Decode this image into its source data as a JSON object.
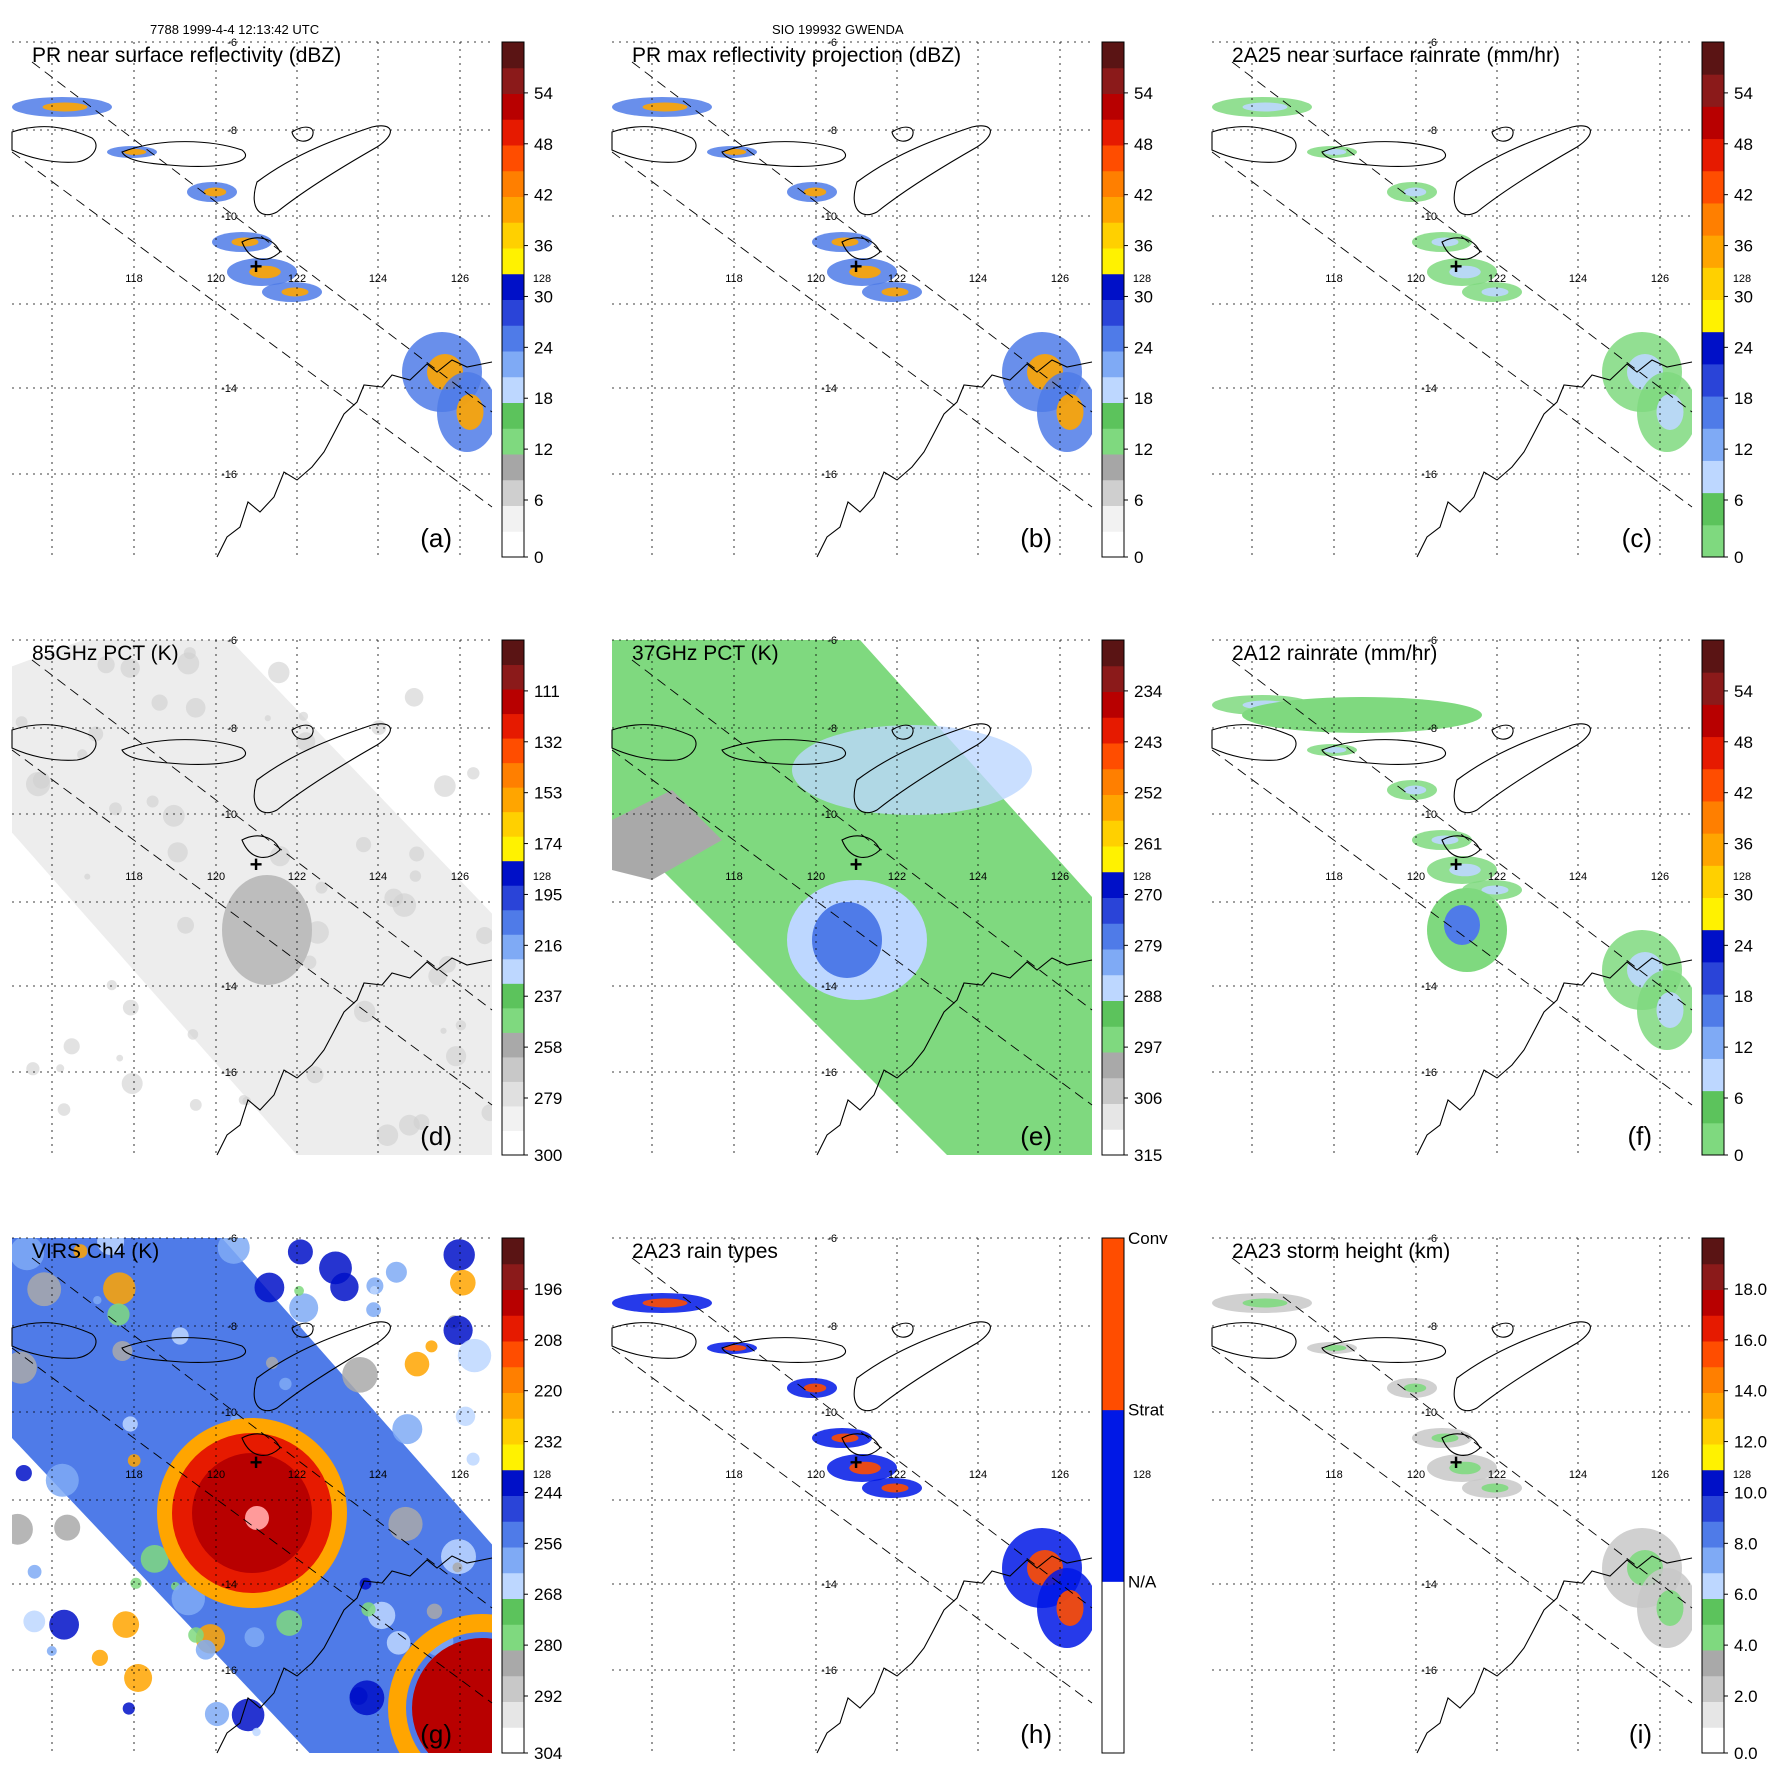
{
  "header": {
    "left": "7788 1999-4-4 12:13:42 UTC",
    "center": "SIO 199932 GWENDA"
  },
  "colors": {
    "map_line": "#000000",
    "grid": "#000000",
    "swath_edge": "#000000",
    "rain_green": "#7fd97f",
    "conv": "#ff4d00",
    "strat": "#0018e6"
  },
  "palettes": {
    "dbz": [
      "#ffffff",
      "#f2f2f2",
      "#cfcfcf",
      "#a6a6a6",
      "#7fd97f",
      "#5cc35c",
      "#bdd7ff",
      "#7faaf5",
      "#4f7be8",
      "#2a44d8",
      "#0010c8",
      "#fff200",
      "#ffd000",
      "#ffa500",
      "#ff7f00",
      "#ff4d00",
      "#e61a00",
      "#b80000",
      "#8b1a1a",
      "#5a1414"
    ],
    "rain": [
      "#7fd97f",
      "#5cc35c",
      "#bdd7ff",
      "#7faaf5",
      "#4f7be8",
      "#2a44d8",
      "#0010c8",
      "#fff200",
      "#ffd000",
      "#ffa500",
      "#ff7f00",
      "#ff4d00",
      "#e61a00",
      "#b80000",
      "#8b1a1a",
      "#5a1414"
    ],
    "pct85": [
      "#ffffff",
      "#f2f2f2",
      "#e0e0e0",
      "#c8c8c8",
      "#a9a9a9",
      "#7fd97f",
      "#5cc35c",
      "#bdd7ff",
      "#7faaf5",
      "#4f7be8",
      "#2a44d8",
      "#0010c8",
      "#fff200",
      "#ffd000",
      "#ffa500",
      "#ff7f00",
      "#ff4d00",
      "#e61a00",
      "#b80000",
      "#8b1a1a",
      "#5a1414"
    ],
    "pct37": [
      "#ffffff",
      "#e6e6e6",
      "#c8c8c8",
      "#a9a9a9",
      "#7fd97f",
      "#5cc35c",
      "#bdd7ff",
      "#7faaf5",
      "#4f7be8",
      "#2a44d8",
      "#0010c8",
      "#fff200",
      "#ffd000",
      "#ffa500",
      "#ff7f00",
      "#ff4d00",
      "#e61a00",
      "#b80000",
      "#8b1a1a",
      "#5a1414"
    ],
    "virs": [
      "#ffffff",
      "#e6e6e6",
      "#c8c8c8",
      "#a9a9a9",
      "#7fd97f",
      "#5cc35c",
      "#bdd7ff",
      "#7faaf5",
      "#4f7be8",
      "#2a44d8",
      "#0010c8",
      "#fff200",
      "#ffd000",
      "#ffa500",
      "#ff7f00",
      "#ff4d00",
      "#e61a00",
      "#b80000",
      "#8b1a1a",
      "#5a1414"
    ],
    "height": [
      "#ffffff",
      "#e6e6e6",
      "#c8c8c8",
      "#a9a9a9",
      "#7fd97f",
      "#5cc35c",
      "#bdd7ff",
      "#7faaf5",
      "#4f7be8",
      "#2a44d8",
      "#0010c8",
      "#fff200",
      "#ffd000",
      "#ffa500",
      "#ff7f00",
      "#ff4d00",
      "#e61a00",
      "#b80000",
      "#8b1a1a",
      "#5a1414"
    ],
    "types": [
      "#ffffff",
      "#ffffff",
      "#0018e6",
      "#0018e6",
      "#ff4d00",
      "#ff4d00"
    ]
  },
  "chart_data": [
    {
      "type": "heatmap",
      "panel": "a",
      "title": "PR near surface reflectivity (dBZ)",
      "label": "(a)",
      "colorbar": {
        "palette": "dbz",
        "ticks": [
          "54",
          "48",
          "42",
          "36",
          "30",
          "24",
          "18",
          "12",
          "6",
          "0"
        ]
      },
      "lon_ticks": [
        "118",
        "120",
        "122",
        "124",
        "126",
        "128"
      ],
      "lat_ticks": [
        "-6",
        "-8",
        "-10",
        "-14",
        "-16"
      ],
      "background": "white",
      "swath": true,
      "storm_center": true
    },
    {
      "type": "heatmap",
      "panel": "b",
      "title": "PR max reflectivity projection (dBZ)",
      "label": "(b)",
      "colorbar": {
        "palette": "dbz",
        "ticks": [
          "54",
          "48",
          "42",
          "36",
          "30",
          "24",
          "18",
          "12",
          "6",
          "0"
        ]
      },
      "lon_ticks": [
        "118",
        "120",
        "122",
        "124",
        "126",
        "128"
      ],
      "lat_ticks": [
        "-6",
        "-8",
        "-10",
        "-14",
        "-16"
      ],
      "background": "white",
      "swath": true,
      "storm_center": true
    },
    {
      "type": "heatmap",
      "panel": "c",
      "title": "2A25 near surface rainrate (mm/hr)",
      "label": "(c)",
      "colorbar": {
        "palette": "rain",
        "ticks": [
          "54",
          "48",
          "42",
          "36",
          "30",
          "24",
          "18",
          "12",
          "6",
          "0"
        ]
      },
      "lon_ticks": [
        "118",
        "120",
        "122",
        "124",
        "126",
        "128"
      ],
      "lat_ticks": [
        "-6",
        "-8",
        "-10",
        "-14",
        "-16"
      ],
      "background": "white",
      "swath": true,
      "storm_center": true
    },
    {
      "type": "heatmap",
      "panel": "d",
      "title": "85GHz PCT (K)",
      "label": "(d)",
      "colorbar": {
        "palette": "pct85",
        "ticks": [
          "111",
          "132",
          "153",
          "174",
          "195",
          "216",
          "237",
          "258",
          "279",
          "300"
        ]
      },
      "lon_ticks": [
        "118",
        "120",
        "122",
        "124",
        "126",
        "128"
      ],
      "lat_ticks": [
        "-6",
        "-8",
        "-10",
        "-14",
        "-16"
      ],
      "background": "gray",
      "swath": true,
      "storm_center": true
    },
    {
      "type": "heatmap",
      "panel": "e",
      "title": "37GHz PCT (K)",
      "label": "(e)",
      "colorbar": {
        "palette": "pct37",
        "ticks": [
          "234",
          "243",
          "252",
          "261",
          "270",
          "279",
          "288",
          "297",
          "306",
          "315"
        ]
      },
      "lon_ticks": [
        "118",
        "120",
        "122",
        "124",
        "126",
        "128"
      ],
      "lat_ticks": [
        "-6",
        "-8",
        "-10",
        "-14",
        "-16"
      ],
      "background": "green",
      "swath": true,
      "storm_center": true
    },
    {
      "type": "heatmap",
      "panel": "f",
      "title": "2A12 rainrate (mm/hr)",
      "label": "(f)",
      "colorbar": {
        "palette": "rain",
        "ticks": [
          "54",
          "48",
          "42",
          "36",
          "30",
          "24",
          "18",
          "12",
          "6",
          "0"
        ]
      },
      "lon_ticks": [
        "118",
        "120",
        "122",
        "124",
        "126",
        "128"
      ],
      "lat_ticks": [
        "-6",
        "-8",
        "-10",
        "-14",
        "-16"
      ],
      "background": "white",
      "swath": true,
      "storm_center": true
    },
    {
      "type": "heatmap",
      "panel": "g",
      "title": "VIRS Ch4 (K)",
      "label": "(g)",
      "colorbar": {
        "palette": "virs",
        "ticks": [
          "196",
          "208",
          "220",
          "232",
          "244",
          "256",
          "268",
          "280",
          "292",
          "304"
        ]
      },
      "lon_ticks": [
        "118",
        "120",
        "122",
        "124",
        "126",
        "128"
      ],
      "lat_ticks": [
        "-6",
        "-8",
        "-10",
        "-14",
        "-16"
      ],
      "background": "virs",
      "swath": true,
      "storm_center": true
    },
    {
      "type": "heatmap",
      "panel": "h",
      "title": "2A23 rain types",
      "label": "(h)",
      "colorbar": {
        "palette": "types",
        "ticks": [
          "Conv",
          "Strat",
          "N/A"
        ],
        "categorical": true
      },
      "lon_ticks": [
        "118",
        "120",
        "122",
        "124",
        "126",
        "128"
      ],
      "lat_ticks": [
        "-6",
        "-8",
        "-10",
        "-14",
        "-16"
      ],
      "background": "white",
      "swath": true,
      "storm_center": true
    },
    {
      "type": "heatmap",
      "panel": "i",
      "title": "2A23 storm height (km)",
      "label": "(i)",
      "colorbar": {
        "palette": "height",
        "ticks": [
          "18.0",
          "16.0",
          "14.0",
          "12.0",
          "10.0",
          "8.0",
          "6.0",
          "4.0",
          "2.0",
          "0.0"
        ]
      },
      "lon_ticks": [
        "118",
        "120",
        "122",
        "124",
        "126",
        "128"
      ],
      "lat_ticks": [
        "-6",
        "-8",
        "-10",
        "-14",
        "-16"
      ],
      "background": "white",
      "swath": true,
      "storm_center": true
    }
  ]
}
